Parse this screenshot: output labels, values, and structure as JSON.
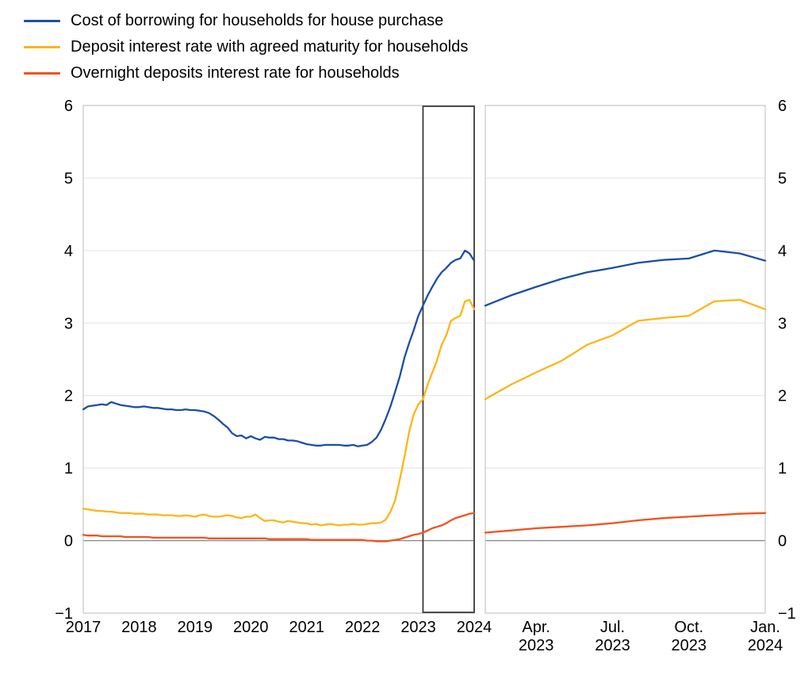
{
  "colors": {
    "blue": "#1c4fa4",
    "yellow": "#fdb515",
    "red": "#f2521d",
    "gridline": "#e7e7e7",
    "zero_line": "#8c8c8c",
    "panel_border": "#c6c6c6",
    "highlight_box": "#3c3c3c",
    "text": "#000000"
  },
  "legend": {
    "items": [
      {
        "label": "Cost of borrowing for households for house purchase",
        "series": "cost_of_borrowing",
        "color": "#1c4fa4"
      },
      {
        "label": "Deposit interest rate with agreed maturity for households",
        "series": "deposit_agreed_maturity",
        "color": "#fdb515"
      },
      {
        "label": "Overnight deposits interest rate for households",
        "series": "overnight_deposits",
        "color": "#f2521d"
      }
    ]
  },
  "chart_data": {
    "type": "line",
    "y_axis": {
      "min": -1,
      "max": 6,
      "tick_labels": [
        "6",
        "5",
        "4",
        "3",
        "2",
        "1",
        "0",
        "−1"
      ],
      "tick_values": [
        6,
        5,
        4,
        3,
        2,
        1,
        0,
        -1
      ],
      "shown_on": "both-sides",
      "grid": "horizontal"
    },
    "panels": [
      {
        "id": "full-history",
        "x_domain": {
          "start": "Jan 2017",
          "end": "Jan 2024",
          "frequency": "monthly",
          "points": 85
        },
        "x_ticks": [
          {
            "label": "2017",
            "month_index": 0
          },
          {
            "label": "2018",
            "month_index": 12
          },
          {
            "label": "2019",
            "month_index": 24
          },
          {
            "label": "2020",
            "month_index": 36
          },
          {
            "label": "2021",
            "month_index": 48
          },
          {
            "label": "2022",
            "month_index": 60
          },
          {
            "label": "2023",
            "month_index": 72
          },
          {
            "label": "2024",
            "month_index": 84
          }
        ],
        "highlight_box": {
          "from_month_index": 73,
          "to_month_index": 84,
          "period": "Feb 2023 – Jan 2024"
        },
        "series": [
          {
            "name": "Cost of borrowing for households for house purchase",
            "color": "#1c4fa4",
            "values": [
              1.81,
              1.85,
              1.86,
              1.87,
              1.88,
              1.87,
              1.91,
              1.89,
              1.87,
              1.86,
              1.85,
              1.84,
              1.84,
              1.85,
              1.84,
              1.83,
              1.83,
              1.82,
              1.81,
              1.81,
              1.8,
              1.8,
              1.81,
              1.8,
              1.8,
              1.79,
              1.78,
              1.76,
              1.72,
              1.67,
              1.61,
              1.56,
              1.48,
              1.44,
              1.45,
              1.41,
              1.44,
              1.41,
              1.39,
              1.43,
              1.42,
              1.42,
              1.4,
              1.4,
              1.38,
              1.38,
              1.37,
              1.35,
              1.33,
              1.32,
              1.31,
              1.31,
              1.32,
              1.32,
              1.32,
              1.32,
              1.31,
              1.31,
              1.32,
              1.3,
              1.31,
              1.32,
              1.36,
              1.42,
              1.53,
              1.68,
              1.85,
              2.05,
              2.26,
              2.52,
              2.72,
              2.9,
              3.1,
              3.24,
              3.38,
              3.5,
              3.61,
              3.7,
              3.76,
              3.83,
              3.87,
              3.89,
              4.0,
              3.96,
              3.86
            ]
          },
          {
            "name": "Deposit interest rate with agreed maturity for households",
            "color": "#fdb515",
            "values": [
              0.44,
              0.43,
              0.42,
              0.41,
              0.41,
              0.4,
              0.4,
              0.39,
              0.38,
              0.38,
              0.38,
              0.37,
              0.37,
              0.37,
              0.36,
              0.36,
              0.36,
              0.35,
              0.35,
              0.35,
              0.34,
              0.34,
              0.35,
              0.34,
              0.33,
              0.35,
              0.36,
              0.34,
              0.33,
              0.33,
              0.34,
              0.35,
              0.34,
              0.32,
              0.31,
              0.33,
              0.33,
              0.36,
              0.31,
              0.27,
              0.28,
              0.28,
              0.26,
              0.25,
              0.27,
              0.26,
              0.25,
              0.24,
              0.24,
              0.22,
              0.23,
              0.21,
              0.22,
              0.23,
              0.22,
              0.21,
              0.22,
              0.22,
              0.23,
              0.22,
              0.22,
              0.23,
              0.24,
              0.24,
              0.25,
              0.29,
              0.4,
              0.55,
              0.84,
              1.15,
              1.49,
              1.74,
              1.88,
              1.95,
              2.15,
              2.32,
              2.48,
              2.7,
              2.83,
              3.03,
              3.07,
              3.1,
              3.3,
              3.32,
              3.19
            ]
          },
          {
            "name": "Overnight deposits interest rate for households",
            "color": "#f2521d",
            "values": [
              0.08,
              0.07,
              0.07,
              0.07,
              0.06,
              0.06,
              0.06,
              0.06,
              0.06,
              0.05,
              0.05,
              0.05,
              0.05,
              0.05,
              0.05,
              0.04,
              0.04,
              0.04,
              0.04,
              0.04,
              0.04,
              0.04,
              0.04,
              0.04,
              0.04,
              0.04,
              0.04,
              0.03,
              0.03,
              0.03,
              0.03,
              0.03,
              0.03,
              0.03,
              0.03,
              0.03,
              0.03,
              0.03,
              0.03,
              0.03,
              0.02,
              0.02,
              0.02,
              0.02,
              0.02,
              0.02,
              0.02,
              0.02,
              0.02,
              0.01,
              0.01,
              0.01,
              0.01,
              0.01,
              0.01,
              0.01,
              0.01,
              0.01,
              0.01,
              0.01,
              0.01,
              0.0,
              0.0,
              -0.01,
              -0.01,
              -0.01,
              0.0,
              0.01,
              0.02,
              0.04,
              0.06,
              0.08,
              0.09,
              0.11,
              0.14,
              0.17,
              0.19,
              0.21,
              0.24,
              0.28,
              0.31,
              0.33,
              0.35,
              0.37,
              0.38
            ]
          }
        ]
      },
      {
        "id": "recent-zoom",
        "x_domain": {
          "start": "Feb 2023",
          "end": "Jan 2024",
          "frequency": "monthly",
          "points": 12
        },
        "x_ticks": [
          {
            "label_line1": "Apr.",
            "label_line2": "2023",
            "month_index": 2
          },
          {
            "label_line1": "Jul.",
            "label_line2": "2023",
            "month_index": 5
          },
          {
            "label_line1": "Oct.",
            "label_line2": "2023",
            "month_index": 8
          },
          {
            "label_line1": "Jan.",
            "label_line2": "2024",
            "month_index": 11
          }
        ],
        "series": [
          {
            "name": "Cost of borrowing for households for house purchase",
            "color": "#1c4fa4",
            "values": [
              3.24,
              3.38,
              3.5,
              3.61,
              3.7,
              3.76,
              3.83,
              3.87,
              3.89,
              4.0,
              3.96,
              3.86
            ]
          },
          {
            "name": "Deposit interest rate with agreed maturity for households",
            "color": "#fdb515",
            "values": [
              1.95,
              2.15,
              2.32,
              2.48,
              2.7,
              2.83,
              3.03,
              3.07,
              3.1,
              3.3,
              3.32,
              3.19
            ]
          },
          {
            "name": "Overnight deposits interest rate for households",
            "color": "#f2521d",
            "values": [
              0.11,
              0.14,
              0.17,
              0.19,
              0.21,
              0.24,
              0.28,
              0.31,
              0.33,
              0.35,
              0.37,
              0.38
            ]
          }
        ]
      }
    ]
  }
}
